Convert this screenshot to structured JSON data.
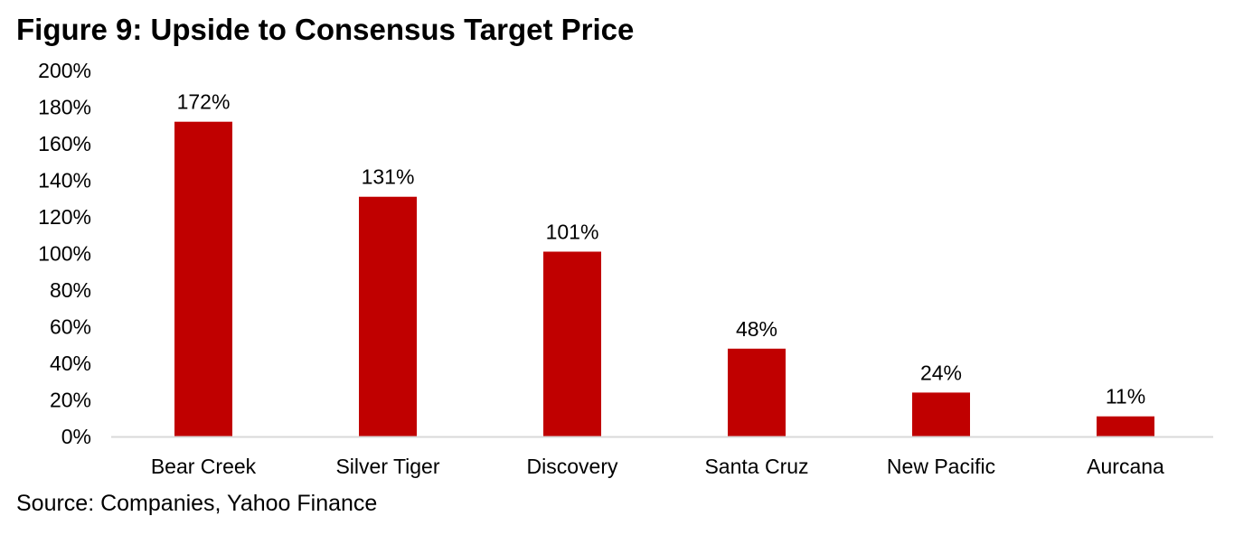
{
  "chart_data": {
    "type": "bar",
    "title": "Figure 9: Upside to Consensus Target Price",
    "categories": [
      "Bear Creek",
      "Silver Tiger",
      "Discovery",
      "Santa Cruz",
      "New Pacific",
      "Aurcana"
    ],
    "values": [
      172,
      131,
      101,
      48,
      24,
      11
    ],
    "data_labels": [
      "172%",
      "131%",
      "101%",
      "48%",
      "24%",
      "11%"
    ],
    "yticks": [
      "0%",
      "20%",
      "40%",
      "60%",
      "80%",
      "100%",
      "120%",
      "140%",
      "160%",
      "180%",
      "200%"
    ],
    "ylim": [
      0,
      200
    ],
    "xlabel": "",
    "ylabel": "",
    "grid": false,
    "legend": "none",
    "bar_color": "#C00000",
    "axis_color": "#D9D9D9",
    "source": "Source: Companies, Yahoo Finance"
  }
}
